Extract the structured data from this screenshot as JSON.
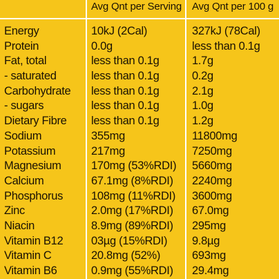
{
  "headers": {
    "serving": "Avg Qnt per Serving",
    "per100": "Avg Qnt per 100 g"
  },
  "rows": [
    {
      "name": "Energy",
      "serving": "10kJ (2Cal)",
      "per100": "327kJ (78Cal)"
    },
    {
      "name": "Protein",
      "serving": "0.0g",
      "per100": "less than 0.1g"
    },
    {
      "name": "Fat, total",
      "serving": "less than 0.1g",
      "per100": "1.7g"
    },
    {
      "name": "- saturated",
      "serving": "less than 0.1g",
      "per100": "0.2g"
    },
    {
      "name": "Carbohydrate",
      "serving": "less than 0.1g",
      "per100": "2.1g"
    },
    {
      "name": "- sugars",
      "serving": "less than 0.1g",
      "per100": "1.0g"
    },
    {
      "name": "Dietary Fibre",
      "serving": "less than 0.1g",
      "per100": "1.2g"
    },
    {
      "name": "Sodium",
      "serving": "355mg",
      "per100": "11800mg"
    },
    {
      "name": "Potassium",
      "serving": "217mg",
      "per100": "7250mg"
    },
    {
      "name": "Magnesium",
      "serving": "170mg (53%RDI)",
      "per100": "5660mg"
    },
    {
      "name": "Calcium",
      "serving": "67.1mg (8%RDI)",
      "per100": "2240mg"
    },
    {
      "name": "Phosphorus",
      "serving": "108mg (11%RDI)",
      "per100": "3600mg"
    },
    {
      "name": "Zinc",
      "serving": "2.0mg (17%RDI)",
      "per100": "67.0mg"
    },
    {
      "name": "Niacin",
      "serving": "8.9mg (89%RDI)",
      "per100": "295mg"
    },
    {
      "name": "Vitamin B12",
      "serving": "03µg (15%RDI)",
      "per100": "9.8µg"
    },
    {
      "name": "Vitamin C",
      "serving": "20.8mg (52%)",
      "per100": "693mg"
    },
    {
      "name": "Vitamin B6",
      "serving": "0.9mg (55%RDI)",
      "per100": "29.4mg"
    }
  ],
  "colors": {
    "background": "#f6c51a",
    "rule": "#ffffff",
    "text": "#1a1204"
  }
}
